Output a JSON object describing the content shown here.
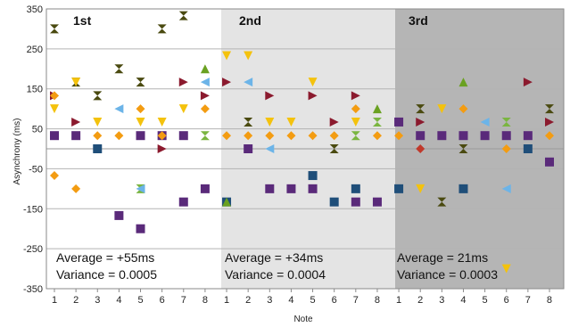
{
  "chart_data": {
    "type": "scatter",
    "title": "",
    "xlabel": "Note",
    "ylabel": "Asynchrony (ms)",
    "ylim": [
      -350,
      350
    ],
    "y_ticks": [
      "350",
      "250",
      "150",
      "50",
      "-50",
      "-150",
      "-250",
      "-350"
    ],
    "x_tick_labels": [
      "1",
      "2",
      "3",
      "4",
      "5",
      "6",
      "7",
      "8",
      "1",
      "2",
      "3",
      "4",
      "5",
      "6",
      "7",
      "8",
      "1",
      "2",
      "3",
      "4",
      "5",
      "6",
      "7",
      "8"
    ],
    "grid": "horizontal",
    "section_colors": [
      "#ffffff",
      "#e4e4e4",
      "#b5b5b5"
    ],
    "sections": [
      {
        "label": "1st",
        "average_text": "Average = +55ms",
        "variance_text": "Variance = 0.0005",
        "points": [
          {
            "note": 1,
            "y": 300,
            "shape": "bowtie",
            "color": "#4a4a10"
          },
          {
            "note": 1,
            "y": 133,
            "shape": "tri-right",
            "color": "#8b1a2e"
          },
          {
            "note": 1,
            "y": 133,
            "shape": "diamond",
            "color": "#f39c12"
          },
          {
            "note": 1,
            "y": 100,
            "shape": "tri-down",
            "color": "#f4c20d"
          },
          {
            "note": 1,
            "y": 33,
            "shape": "square",
            "color": "#5a2a7a"
          },
          {
            "note": 1,
            "y": -67,
            "shape": "diamond",
            "color": "#f39c12"
          },
          {
            "note": 2,
            "y": 167,
            "shape": "bowtie",
            "color": "#4a4a10"
          },
          {
            "note": 2,
            "y": 167,
            "shape": "tri-down",
            "color": "#f4c20d"
          },
          {
            "note": 2,
            "y": 67,
            "shape": "tri-right",
            "color": "#8b1a2e"
          },
          {
            "note": 2,
            "y": 33,
            "shape": "square",
            "color": "#5a2a7a"
          },
          {
            "note": 2,
            "y": -100,
            "shape": "diamond",
            "color": "#f39c12"
          },
          {
            "note": 3,
            "y": 133,
            "shape": "bowtie",
            "color": "#4a4a10"
          },
          {
            "note": 3,
            "y": 67,
            "shape": "tri-down",
            "color": "#f4c20d"
          },
          {
            "note": 3,
            "y": 33,
            "shape": "diamond",
            "color": "#f39c12"
          },
          {
            "note": 3,
            "y": 0,
            "shape": "square",
            "color": "#1f4e79"
          },
          {
            "note": 4,
            "y": 200,
            "shape": "bowtie",
            "color": "#4a4a10"
          },
          {
            "note": 4,
            "y": 100,
            "shape": "tri-left",
            "color": "#6cb4e8"
          },
          {
            "note": 4,
            "y": 33,
            "shape": "diamond",
            "color": "#f39c12"
          },
          {
            "note": 4,
            "y": -167,
            "shape": "square",
            "color": "#5a2a7a"
          },
          {
            "note": 5,
            "y": 167,
            "shape": "bowtie",
            "color": "#4a4a10"
          },
          {
            "note": 5,
            "y": 100,
            "shape": "diamond",
            "color": "#f39c12"
          },
          {
            "note": 5,
            "y": 67,
            "shape": "tri-down",
            "color": "#f4c20d"
          },
          {
            "note": 5,
            "y": 33,
            "shape": "square",
            "color": "#5a2a7a"
          },
          {
            "note": 5,
            "y": -100,
            "shape": "bowtie",
            "color": "#7ab540"
          },
          {
            "note": 5,
            "y": -100,
            "shape": "tri-left",
            "color": "#6cb4e8"
          },
          {
            "note": 5,
            "y": -200,
            "shape": "square",
            "color": "#5a2a7a"
          },
          {
            "note": 6,
            "y": 300,
            "shape": "bowtie",
            "color": "#4a4a10"
          },
          {
            "note": 6,
            "y": 67,
            "shape": "tri-down",
            "color": "#f4c20d"
          },
          {
            "note": 6,
            "y": 33,
            "shape": "square",
            "color": "#5a2a7a"
          },
          {
            "note": 6,
            "y": 33,
            "shape": "diamond",
            "color": "#f39c12"
          },
          {
            "note": 6,
            "y": 0,
            "shape": "tri-right",
            "color": "#8b1a2e"
          },
          {
            "note": 7,
            "y": 333,
            "shape": "bowtie",
            "color": "#4a4a10"
          },
          {
            "note": 7,
            "y": 167,
            "shape": "tri-right",
            "color": "#8b1a2e"
          },
          {
            "note": 7,
            "y": 100,
            "shape": "tri-down",
            "color": "#f4c20d"
          },
          {
            "note": 7,
            "y": 33,
            "shape": "square",
            "color": "#5a2a7a"
          },
          {
            "note": 7,
            "y": -133,
            "shape": "square",
            "color": "#5a2a7a"
          },
          {
            "note": 8,
            "y": 200,
            "shape": "tri-up",
            "color": "#6aa121"
          },
          {
            "note": 8,
            "y": 167,
            "shape": "tri-left",
            "color": "#6cb4e8"
          },
          {
            "note": 8,
            "y": 133,
            "shape": "tri-right",
            "color": "#8b1a2e"
          },
          {
            "note": 8,
            "y": 100,
            "shape": "diamond",
            "color": "#f39c12"
          },
          {
            "note": 8,
            "y": 33,
            "shape": "bowtie",
            "color": "#7ab540"
          },
          {
            "note": 8,
            "y": -100,
            "shape": "square",
            "color": "#5a2a7a"
          }
        ]
      },
      {
        "label": "2nd",
        "average_text": "Average = +34ms",
        "variance_text": "Variance = 0.0004",
        "points": [
          {
            "note": 1,
            "y": 233,
            "shape": "tri-down",
            "color": "#f4c20d"
          },
          {
            "note": 1,
            "y": 167,
            "shape": "tri-right",
            "color": "#8b1a2e"
          },
          {
            "note": 1,
            "y": 33,
            "shape": "diamond",
            "color": "#f39c12"
          },
          {
            "note": 1,
            "y": -133,
            "shape": "square",
            "color": "#1f4e79"
          },
          {
            "note": 1,
            "y": -133,
            "shape": "tri-up",
            "color": "#6aa121"
          },
          {
            "note": 2,
            "y": 233,
            "shape": "tri-down",
            "color": "#f4c20d"
          },
          {
            "note": 2,
            "y": 167,
            "shape": "tri-left",
            "color": "#6cb4e8"
          },
          {
            "note": 2,
            "y": 67,
            "shape": "bowtie",
            "color": "#4a4a10"
          },
          {
            "note": 2,
            "y": 33,
            "shape": "diamond",
            "color": "#f39c12"
          },
          {
            "note": 2,
            "y": 0,
            "shape": "square",
            "color": "#5a2a7a"
          },
          {
            "note": 3,
            "y": 133,
            "shape": "tri-right",
            "color": "#8b1a2e"
          },
          {
            "note": 3,
            "y": 67,
            "shape": "tri-down",
            "color": "#f4c20d"
          },
          {
            "note": 3,
            "y": 33,
            "shape": "diamond",
            "color": "#f39c12"
          },
          {
            "note": 3,
            "y": 0,
            "shape": "tri-left",
            "color": "#6cb4e8"
          },
          {
            "note": 3,
            "y": -100,
            "shape": "square",
            "color": "#5a2a7a"
          },
          {
            "note": 4,
            "y": 67,
            "shape": "tri-down",
            "color": "#f4c20d"
          },
          {
            "note": 4,
            "y": 33,
            "shape": "diamond",
            "color": "#f39c12"
          },
          {
            "note": 4,
            "y": -100,
            "shape": "square",
            "color": "#5a2a7a"
          },
          {
            "note": 5,
            "y": 167,
            "shape": "tri-down",
            "color": "#f4c20d"
          },
          {
            "note": 5,
            "y": 133,
            "shape": "tri-right",
            "color": "#8b1a2e"
          },
          {
            "note": 5,
            "y": 33,
            "shape": "diamond",
            "color": "#f39c12"
          },
          {
            "note": 5,
            "y": -67,
            "shape": "square",
            "color": "#1f4e79"
          },
          {
            "note": 5,
            "y": -100,
            "shape": "square",
            "color": "#5a2a7a"
          },
          {
            "note": 6,
            "y": 67,
            "shape": "tri-right",
            "color": "#8b1a2e"
          },
          {
            "note": 6,
            "y": 33,
            "shape": "diamond",
            "color": "#f39c12"
          },
          {
            "note": 6,
            "y": 0,
            "shape": "bowtie",
            "color": "#4a4a10"
          },
          {
            "note": 6,
            "y": -133,
            "shape": "square",
            "color": "#1f4e79"
          },
          {
            "note": 7,
            "y": 133,
            "shape": "tri-right",
            "color": "#8b1a2e"
          },
          {
            "note": 7,
            "y": 100,
            "shape": "diamond",
            "color": "#f39c12"
          },
          {
            "note": 7,
            "y": 67,
            "shape": "tri-down",
            "color": "#f4c20d"
          },
          {
            "note": 7,
            "y": 33,
            "shape": "bowtie",
            "color": "#7ab540"
          },
          {
            "note": 7,
            "y": -100,
            "shape": "square",
            "color": "#1f4e79"
          },
          {
            "note": 7,
            "y": -133,
            "shape": "square",
            "color": "#5a2a7a"
          },
          {
            "note": 8,
            "y": 100,
            "shape": "tri-up",
            "color": "#6aa121"
          },
          {
            "note": 8,
            "y": 67,
            "shape": "bowtie",
            "color": "#7ab540"
          },
          {
            "note": 8,
            "y": 33,
            "shape": "diamond",
            "color": "#f39c12"
          },
          {
            "note": 8,
            "y": -133,
            "shape": "square",
            "color": "#5a2a7a"
          }
        ]
      },
      {
        "label": "3rd",
        "average_text": "Average = 21ms",
        "variance_text": "Variance = 0.0003",
        "points": [
          {
            "note": 1,
            "y": 67,
            "shape": "square",
            "color": "#5a2a7a"
          },
          {
            "note": 1,
            "y": 33,
            "shape": "diamond",
            "color": "#f39c12"
          },
          {
            "note": 1,
            "y": -100,
            "shape": "square",
            "color": "#1f4e79"
          },
          {
            "note": 2,
            "y": 100,
            "shape": "bowtie",
            "color": "#4a4a10"
          },
          {
            "note": 2,
            "y": 67,
            "shape": "tri-right",
            "color": "#8b1a2e"
          },
          {
            "note": 2,
            "y": 33,
            "shape": "square",
            "color": "#5a2a7a"
          },
          {
            "note": 2,
            "y": 0,
            "shape": "diamond",
            "color": "#c0392b"
          },
          {
            "note": 2,
            "y": -100,
            "shape": "tri-down",
            "color": "#f4c20d"
          },
          {
            "note": 3,
            "y": 100,
            "shape": "tri-down",
            "color": "#f4c20d"
          },
          {
            "note": 3,
            "y": 33,
            "shape": "square",
            "color": "#5a2a7a"
          },
          {
            "note": 3,
            "y": -133,
            "shape": "bowtie",
            "color": "#4a4a10"
          },
          {
            "note": 4,
            "y": 167,
            "shape": "tri-up",
            "color": "#6aa121"
          },
          {
            "note": 4,
            "y": 100,
            "shape": "diamond",
            "color": "#f39c12"
          },
          {
            "note": 4,
            "y": 33,
            "shape": "square",
            "color": "#5a2a7a"
          },
          {
            "note": 4,
            "y": 0,
            "shape": "bowtie",
            "color": "#4a4a10"
          },
          {
            "note": 4,
            "y": -100,
            "shape": "square",
            "color": "#1f4e79"
          },
          {
            "note": 5,
            "y": 67,
            "shape": "tri-left",
            "color": "#6cb4e8"
          },
          {
            "note": 5,
            "y": 33,
            "shape": "square",
            "color": "#5a2a7a"
          },
          {
            "note": 6,
            "y": 67,
            "shape": "bowtie",
            "color": "#7ab540"
          },
          {
            "note": 6,
            "y": 33,
            "shape": "square",
            "color": "#5a2a7a"
          },
          {
            "note": 6,
            "y": 0,
            "shape": "diamond",
            "color": "#f39c12"
          },
          {
            "note": 6,
            "y": -100,
            "shape": "tri-left",
            "color": "#6cb4e8"
          },
          {
            "note": 6,
            "y": -300,
            "shape": "tri-down",
            "color": "#f4c20d"
          },
          {
            "note": 7,
            "y": 167,
            "shape": "tri-right",
            "color": "#8b1a2e"
          },
          {
            "note": 7,
            "y": 33,
            "shape": "square",
            "color": "#5a2a7a"
          },
          {
            "note": 7,
            "y": 0,
            "shape": "square",
            "color": "#1f4e79"
          },
          {
            "note": 8,
            "y": 100,
            "shape": "bowtie",
            "color": "#4a4a10"
          },
          {
            "note": 8,
            "y": 67,
            "shape": "tri-right",
            "color": "#8b1a2e"
          },
          {
            "note": 8,
            "y": 33,
            "shape": "diamond",
            "color": "#f39c12"
          },
          {
            "note": 8,
            "y": -33,
            "shape": "square",
            "color": "#5a2a7a"
          }
        ]
      }
    ]
  }
}
